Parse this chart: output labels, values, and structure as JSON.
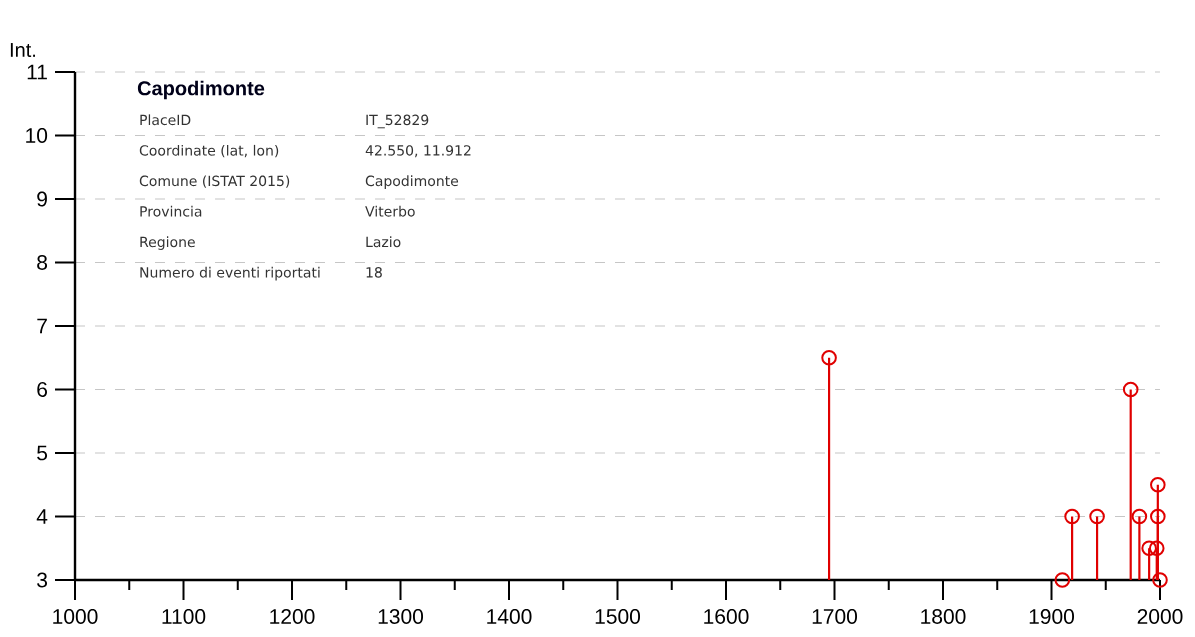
{
  "chart_data": {
    "type": "lollipop",
    "title": "Capodimonte",
    "ylabel": "Int.",
    "annotations": [
      "PlaceID",
      "IT_52829",
      "Coordinate (lat, lon)",
      "42.550, 11.912",
      "Comune (ISTAT 2015)",
      "Capodimonte",
      "Provincia",
      "Viterbo",
      "Regione",
      "Lazio",
      "Numero di eventi riportati",
      "18"
    ],
    "x": [
      1695,
      1910,
      1919,
      1942,
      1973,
      1981,
      1990,
      1997,
      1998,
      1998,
      2000
    ],
    "values": [
      6.5,
      3,
      4,
      4,
      6,
      4,
      3.5,
      3.5,
      4.5,
      4,
      3
    ],
    "color": "#e00000",
    "marker": "circle",
    "grid": "y",
    "xlim": [
      1000,
      2000
    ],
    "xticks": [
      1000,
      1100,
      1200,
      1300,
      1400,
      1500,
      1600,
      1700,
      1800,
      1900,
      2000
    ],
    "ylim": [
      3,
      11
    ],
    "yticks": [
      3,
      4,
      5,
      6,
      7,
      8,
      9,
      10,
      11
    ]
  }
}
